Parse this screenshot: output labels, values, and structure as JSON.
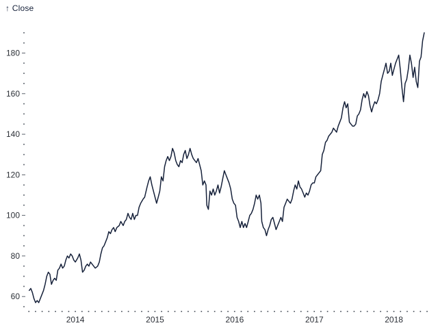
{
  "page": {
    "background": "#ffffff"
  },
  "chart_data": {
    "type": "line",
    "title": "",
    "xlabel": "",
    "ylabel": "Close",
    "ylabel_display": "↑ Close",
    "legend_position": "none",
    "grid": false,
    "line_color": "#16213a",
    "tick_color": "#5b616b",
    "tick_label_color": "#2b2f36",
    "x_range": [
      2013.38,
      2018.45
    ],
    "y_range": [
      54,
      194
    ],
    "x_ticks": [
      2014,
      2015,
      2016,
      2017,
      2018
    ],
    "y_ticks": [
      60,
      80,
      100,
      120,
      140,
      160,
      180
    ],
    "y_minor_step": 5,
    "x_minor_step_years": 0.0833333,
    "series": [
      {
        "name": "Close",
        "points": [
          [
            2013.42,
            63
          ],
          [
            2013.44,
            64
          ],
          [
            2013.46,
            62
          ],
          [
            2013.48,
            59
          ],
          [
            2013.5,
            57
          ],
          [
            2013.52,
            58
          ],
          [
            2013.54,
            57
          ],
          [
            2013.57,
            60
          ],
          [
            2013.6,
            63
          ],
          [
            2013.62,
            66
          ],
          [
            2013.64,
            70
          ],
          [
            2013.66,
            72
          ],
          [
            2013.68,
            71
          ],
          [
            2013.7,
            66
          ],
          [
            2013.72,
            68
          ],
          [
            2013.74,
            69
          ],
          [
            2013.76,
            68
          ],
          [
            2013.78,
            73
          ],
          [
            2013.8,
            74
          ],
          [
            2013.82,
            76
          ],
          [
            2013.84,
            74
          ],
          [
            2013.86,
            75
          ],
          [
            2013.88,
            78
          ],
          [
            2013.9,
            80
          ],
          [
            2013.92,
            79
          ],
          [
            2013.94,
            81
          ],
          [
            2013.96,
            80
          ],
          [
            2013.98,
            78
          ],
          [
            2014.0,
            77
          ],
          [
            2014.03,
            79
          ],
          [
            2014.05,
            81
          ],
          [
            2014.07,
            78
          ],
          [
            2014.09,
            72
          ],
          [
            2014.11,
            73
          ],
          [
            2014.13,
            75
          ],
          [
            2014.15,
            76
          ],
          [
            2014.17,
            75
          ],
          [
            2014.19,
            77
          ],
          [
            2014.21,
            76
          ],
          [
            2014.23,
            75
          ],
          [
            2014.25,
            74
          ],
          [
            2014.28,
            75
          ],
          [
            2014.3,
            77
          ],
          [
            2014.32,
            81
          ],
          [
            2014.34,
            84
          ],
          [
            2014.36,
            85
          ],
          [
            2014.38,
            87
          ],
          [
            2014.4,
            89
          ],
          [
            2014.42,
            92
          ],
          [
            2014.44,
            91
          ],
          [
            2014.46,
            93
          ],
          [
            2014.48,
            94
          ],
          [
            2014.5,
            92
          ],
          [
            2014.52,
            94
          ],
          [
            2014.55,
            95
          ],
          [
            2014.57,
            97
          ],
          [
            2014.6,
            95
          ],
          [
            2014.62,
            97
          ],
          [
            2014.64,
            98
          ],
          [
            2014.66,
            101
          ],
          [
            2014.68,
            99
          ],
          [
            2014.7,
            98
          ],
          [
            2014.72,
            101
          ],
          [
            2014.74,
            98
          ],
          [
            2014.76,
            100
          ],
          [
            2014.78,
            100
          ],
          [
            2014.8,
            104
          ],
          [
            2014.82,
            106
          ],
          [
            2014.85,
            108
          ],
          [
            2014.87,
            109
          ],
          [
            2014.9,
            114
          ],
          [
            2014.92,
            117
          ],
          [
            2014.94,
            119
          ],
          [
            2014.96,
            115
          ],
          [
            2014.98,
            112
          ],
          [
            2015.0,
            109
          ],
          [
            2015.02,
            106
          ],
          [
            2015.04,
            109
          ],
          [
            2015.06,
            112
          ],
          [
            2015.08,
            119
          ],
          [
            2015.1,
            117
          ],
          [
            2015.12,
            124
          ],
          [
            2015.14,
            127
          ],
          [
            2015.16,
            129
          ],
          [
            2015.18,
            127
          ],
          [
            2015.2,
            129
          ],
          [
            2015.22,
            133
          ],
          [
            2015.24,
            131
          ],
          [
            2015.26,
            127
          ],
          [
            2015.28,
            125
          ],
          [
            2015.3,
            124
          ],
          [
            2015.32,
            127
          ],
          [
            2015.34,
            126
          ],
          [
            2015.36,
            130
          ],
          [
            2015.38,
            132
          ],
          [
            2015.4,
            128
          ],
          [
            2015.42,
            130
          ],
          [
            2015.44,
            133
          ],
          [
            2015.46,
            130
          ],
          [
            2015.48,
            128
          ],
          [
            2015.5,
            127
          ],
          [
            2015.52,
            126
          ],
          [
            2015.54,
            128
          ],
          [
            2015.56,
            125
          ],
          [
            2015.58,
            122
          ],
          [
            2015.6,
            115
          ],
          [
            2015.62,
            117
          ],
          [
            2015.64,
            115
          ],
          [
            2015.65,
            105
          ],
          [
            2015.67,
            103
          ],
          [
            2015.69,
            112
          ],
          [
            2015.71,
            110
          ],
          [
            2015.73,
            113
          ],
          [
            2015.75,
            110
          ],
          [
            2015.77,
            112
          ],
          [
            2015.79,
            115
          ],
          [
            2015.81,
            111
          ],
          [
            2015.83,
            114
          ],
          [
            2015.85,
            118
          ],
          [
            2015.87,
            122
          ],
          [
            2015.89,
            120
          ],
          [
            2015.91,
            118
          ],
          [
            2015.93,
            116
          ],
          [
            2015.95,
            113
          ],
          [
            2015.97,
            108
          ],
          [
            2015.99,
            106
          ],
          [
            2016.01,
            105
          ],
          [
            2016.03,
            99
          ],
          [
            2016.05,
            97
          ],
          [
            2016.07,
            94
          ],
          [
            2016.09,
            97
          ],
          [
            2016.11,
            94
          ],
          [
            2016.13,
            96
          ],
          [
            2016.15,
            94
          ],
          [
            2016.17,
            97
          ],
          [
            2016.19,
            100
          ],
          [
            2016.21,
            101
          ],
          [
            2016.23,
            103
          ],
          [
            2016.25,
            106
          ],
          [
            2016.27,
            110
          ],
          [
            2016.29,
            108
          ],
          [
            2016.31,
            110
          ],
          [
            2016.33,
            106
          ],
          [
            2016.34,
            97
          ],
          [
            2016.36,
            94
          ],
          [
            2016.38,
            93
          ],
          [
            2016.4,
            90
          ],
          [
            2016.42,
            93
          ],
          [
            2016.44,
            95
          ],
          [
            2016.46,
            98
          ],
          [
            2016.48,
            99
          ],
          [
            2016.5,
            96
          ],
          [
            2016.52,
            93
          ],
          [
            2016.54,
            95
          ],
          [
            2016.56,
            97
          ],
          [
            2016.58,
            99
          ],
          [
            2016.6,
            97
          ],
          [
            2016.62,
            104
          ],
          [
            2016.64,
            106
          ],
          [
            2016.66,
            108
          ],
          [
            2016.68,
            107
          ],
          [
            2016.7,
            106
          ],
          [
            2016.72,
            108
          ],
          [
            2016.74,
            112
          ],
          [
            2016.76,
            115
          ],
          [
            2016.78,
            113
          ],
          [
            2016.8,
            117
          ],
          [
            2016.82,
            114
          ],
          [
            2016.84,
            113
          ],
          [
            2016.86,
            111
          ],
          [
            2016.88,
            109
          ],
          [
            2016.9,
            111
          ],
          [
            2016.92,
            110
          ],
          [
            2016.94,
            112
          ],
          [
            2016.96,
            115
          ],
          [
            2016.98,
            116
          ],
          [
            2017.0,
            116
          ],
          [
            2017.02,
            119
          ],
          [
            2017.04,
            120
          ],
          [
            2017.06,
            121
          ],
          [
            2017.08,
            122
          ],
          [
            2017.1,
            130
          ],
          [
            2017.12,
            132
          ],
          [
            2017.14,
            136
          ],
          [
            2017.16,
            137
          ],
          [
            2017.18,
            139
          ],
          [
            2017.2,
            140
          ],
          [
            2017.22,
            141
          ],
          [
            2017.24,
            143
          ],
          [
            2017.26,
            142
          ],
          [
            2017.28,
            141
          ],
          [
            2017.3,
            144
          ],
          [
            2017.32,
            146
          ],
          [
            2017.34,
            148
          ],
          [
            2017.36,
            153
          ],
          [
            2017.38,
            156
          ],
          [
            2017.4,
            153
          ],
          [
            2017.42,
            155
          ],
          [
            2017.44,
            146
          ],
          [
            2017.46,
            145
          ],
          [
            2017.48,
            144
          ],
          [
            2017.5,
            144
          ],
          [
            2017.52,
            145
          ],
          [
            2017.54,
            149
          ],
          [
            2017.56,
            150
          ],
          [
            2017.58,
            152
          ],
          [
            2017.6,
            157
          ],
          [
            2017.62,
            160
          ],
          [
            2017.64,
            158
          ],
          [
            2017.66,
            161
          ],
          [
            2017.68,
            159
          ],
          [
            2017.7,
            154
          ],
          [
            2017.72,
            151
          ],
          [
            2017.74,
            154
          ],
          [
            2017.76,
            156
          ],
          [
            2017.78,
            155
          ],
          [
            2017.8,
            157
          ],
          [
            2017.82,
            160
          ],
          [
            2017.84,
            166
          ],
          [
            2017.86,
            169
          ],
          [
            2017.88,
            172
          ],
          [
            2017.9,
            175
          ],
          [
            2017.92,
            170
          ],
          [
            2017.94,
            171
          ],
          [
            2017.96,
            175
          ],
          [
            2017.98,
            169
          ],
          [
            2018.0,
            172
          ],
          [
            2018.02,
            175
          ],
          [
            2018.04,
            177
          ],
          [
            2018.06,
            179
          ],
          [
            2018.08,
            172
          ],
          [
            2018.1,
            163
          ],
          [
            2018.12,
            156
          ],
          [
            2018.14,
            165
          ],
          [
            2018.16,
            167
          ],
          [
            2018.18,
            172
          ],
          [
            2018.2,
            179
          ],
          [
            2018.22,
            175
          ],
          [
            2018.24,
            168
          ],
          [
            2018.26,
            173
          ],
          [
            2018.28,
            166
          ],
          [
            2018.3,
            163
          ],
          [
            2018.32,
            176
          ],
          [
            2018.34,
            178
          ],
          [
            2018.36,
            186
          ],
          [
            2018.38,
            190
          ]
        ]
      }
    ]
  }
}
